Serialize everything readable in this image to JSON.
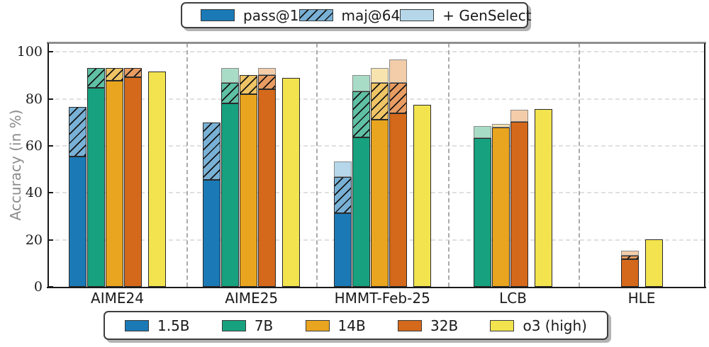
{
  "chart_data": {
    "type": "bar",
    "title": "",
    "ylabel": "Accuracy (in %)",
    "ylim": [
      0,
      103.7
    ],
    "yticks": [
      0,
      20,
      40,
      60,
      80,
      100
    ],
    "grid": "horizontal-dashed",
    "group_separators": "vertical-dashed",
    "legend_position": {
      "stack_legend": "top-center",
      "model_legend": "bottom-center"
    },
    "categories": [
      "AIME24",
      "AIME25",
      "HMMT-Feb-25",
      "LCB",
      "HLE"
    ],
    "stack_legend": [
      "pass@1",
      "maj@64",
      "+ GenSelect"
    ],
    "series": [
      {
        "name": "1.5B",
        "color": "#1b79b5",
        "maj_color": "#79b1d6",
        "gen_color": "#b6d7ea",
        "pass1": [
          55.5,
          45.6,
          31.5,
          null,
          null
        ],
        "maj64": [
          76.7,
          70.0,
          46.7,
          null,
          null
        ],
        "genselect": [
          null,
          null,
          53.3,
          null,
          null
        ]
      },
      {
        "name": "7B",
        "color": "#18a17f",
        "maj_color": "#5fc0a4",
        "gen_color": "#a9dcc6",
        "pass1": [
          84.7,
          78.2,
          63.5,
          63.3,
          null
        ],
        "maj64": [
          93.3,
          86.7,
          83.3,
          null,
          null
        ],
        "genselect": [
          null,
          93.3,
          90.0,
          68.3,
          null
        ]
      },
      {
        "name": "14B",
        "color": "#e9a51f",
        "maj_color": "#efc465",
        "gen_color": "#f6e3ae",
        "pass1": [
          87.8,
          82.0,
          71.2,
          67.8,
          null
        ],
        "maj64": [
          93.3,
          90.0,
          86.7,
          null,
          null
        ],
        "genselect": [
          null,
          null,
          93.3,
          69.2,
          null
        ]
      },
      {
        "name": "32B",
        "color": "#d4681b",
        "maj_color": "#e89c62",
        "gen_color": "#f3cda9",
        "pass1": [
          89.2,
          84.0,
          73.8,
          70.2,
          11.9
        ],
        "maj64": [
          93.3,
          90.0,
          86.7,
          null,
          13.3
        ],
        "genselect": [
          null,
          93.3,
          96.7,
          75.3,
          15.5
        ]
      },
      {
        "name": "o3 (high)",
        "color": "#f2e34f",
        "maj_color": null,
        "gen_color": null,
        "pass1": [
          91.6,
          88.9,
          77.5,
          75.8,
          20.3
        ],
        "maj64": [
          null,
          null,
          null,
          null,
          null
        ],
        "genselect": [
          null,
          null,
          null,
          null,
          null
        ]
      }
    ]
  }
}
